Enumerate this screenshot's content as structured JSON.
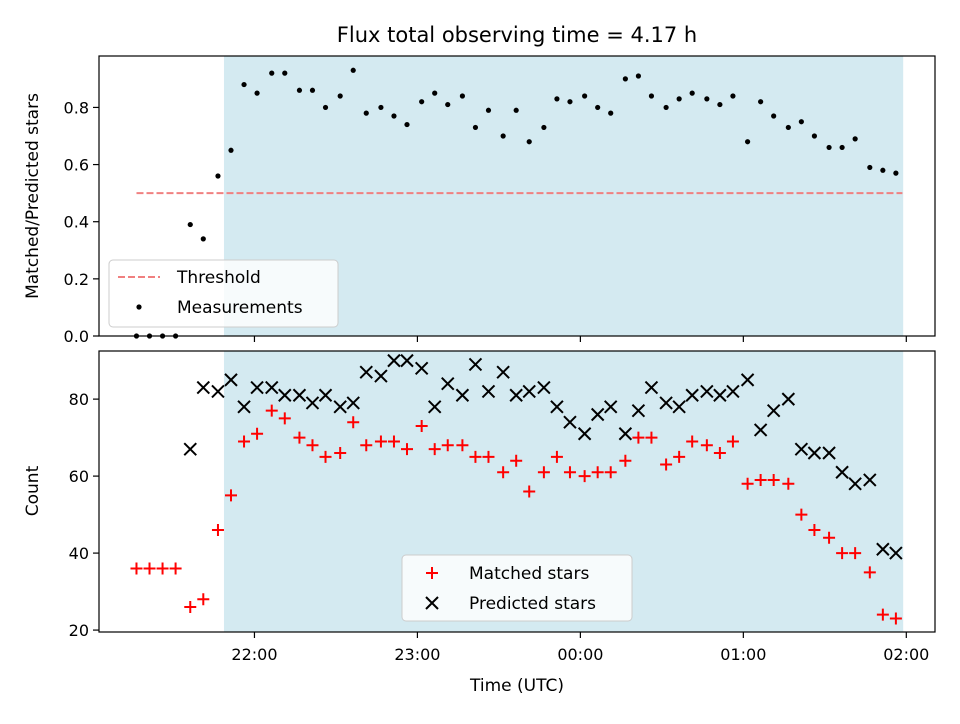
{
  "figure": {
    "title": "Flux total observing time = 4.17 h",
    "xlabel": "Time (UTC)",
    "xticks": [
      {
        "t": 21.9839,
        "label": "22:00"
      },
      {
        "t": 22.9839,
        "label": "23:00"
      },
      {
        "t": 23.9839,
        "label": "00:00"
      },
      {
        "t": 24.9839,
        "label": "01:00"
      },
      {
        "t": 25.9839,
        "label": "02:00"
      }
    ],
    "xlim": [
      21.03,
      26.16
    ],
    "observing_window": [
      21.7969,
      25.9648
    ],
    "colors": {
      "window": "#d4eaf1",
      "threshold": "#f08080",
      "matched": "#ff0000",
      "predicted": "#000000",
      "measure": "#000000"
    }
  },
  "chart_data": [
    {
      "type": "scatter",
      "panel": "top",
      "ylabel": "Matched/Predicted stars",
      "ylim": [
        0,
        0.98
      ],
      "yticks": [
        "0.0",
        "0.2",
        "0.4",
        "0.6",
        "0.8"
      ],
      "threshold": {
        "name": "Threshold",
        "y": 0.5,
        "x_range": [
          21.26,
          25.96
        ]
      },
      "legend": [
        "Threshold",
        "Measurements"
      ],
      "legend_position": "lower-left",
      "series": [
        {
          "name": "Measurements",
          "x": [
            21.26,
            21.34,
            21.42,
            21.5,
            21.59,
            21.67,
            21.76,
            21.84,
            21.92,
            22.0,
            22.09,
            22.17,
            22.26,
            22.34,
            22.42,
            22.51,
            22.59,
            22.67,
            22.76,
            22.84,
            22.92,
            23.01,
            23.09,
            23.17,
            23.26,
            23.34,
            23.42,
            23.51,
            23.59,
            23.67,
            23.76,
            23.84,
            23.92,
            24.01,
            24.09,
            24.17,
            24.26,
            24.34,
            24.42,
            24.51,
            24.59,
            24.67,
            24.76,
            24.84,
            24.92,
            25.01,
            25.09,
            25.17,
            25.26,
            25.34,
            25.42,
            25.51,
            25.59,
            25.67,
            25.76,
            25.84,
            25.92
          ],
          "y": [
            0.0,
            0.0,
            0.0,
            0.0,
            0.39,
            0.34,
            0.56,
            0.65,
            0.88,
            0.85,
            0.92,
            0.92,
            0.86,
            0.86,
            0.8,
            0.84,
            0.93,
            0.78,
            0.8,
            0.77,
            0.74,
            0.82,
            0.85,
            0.81,
            0.84,
            0.73,
            0.79,
            0.7,
            0.79,
            0.68,
            0.73,
            0.83,
            0.82,
            0.84,
            0.8,
            0.78,
            0.9,
            0.91,
            0.84,
            0.8,
            0.83,
            0.85,
            0.83,
            0.81,
            0.84,
            0.68,
            0.82,
            0.77,
            0.73,
            0.75,
            0.7,
            0.66,
            0.66,
            0.69,
            0.59,
            0.58,
            0.57
          ]
        }
      ]
    },
    {
      "type": "scatter",
      "panel": "bottom",
      "ylabel": "Count",
      "ylim": [
        19.5,
        92.5
      ],
      "yticks": [
        "20",
        "40",
        "60",
        "80"
      ],
      "legend": [
        "Matched stars",
        "Predicted stars"
      ],
      "legend_position": "lower-center",
      "x": [
        21.26,
        21.34,
        21.42,
        21.5,
        21.59,
        21.67,
        21.76,
        21.84,
        21.92,
        22.0,
        22.09,
        22.17,
        22.26,
        22.34,
        22.42,
        22.51,
        22.59,
        22.67,
        22.76,
        22.84,
        22.92,
        23.01,
        23.09,
        23.17,
        23.26,
        23.34,
        23.42,
        23.51,
        23.59,
        23.67,
        23.76,
        23.84,
        23.92,
        24.01,
        24.09,
        24.17,
        24.26,
        24.34,
        24.42,
        24.51,
        24.59,
        24.67,
        24.76,
        24.84,
        24.92,
        25.01,
        25.09,
        25.17,
        25.26,
        25.34,
        25.42,
        25.51,
        25.59,
        25.67,
        25.76,
        25.84,
        25.92
      ],
      "series": [
        {
          "name": "Matched stars",
          "marker": "plus",
          "values": [
            36,
            36,
            36,
            36,
            26,
            28,
            46,
            55,
            69,
            71,
            77,
            75,
            70,
            68,
            65,
            66,
            74,
            68,
            69,
            69,
            67,
            73,
            67,
            68,
            68,
            65,
            65,
            61,
            64,
            56,
            61,
            65,
            61,
            60,
            61,
            61,
            64,
            70,
            70,
            63,
            65,
            69,
            68,
            66,
            69,
            58,
            59,
            59,
            58,
            50,
            46,
            44,
            40,
            40,
            35,
            24,
            23
          ]
        },
        {
          "name": "Predicted stars",
          "marker": "x",
          "values": [
            null,
            null,
            null,
            null,
            67,
            83,
            82,
            85,
            78,
            83,
            83,
            81,
            81,
            79,
            81,
            78,
            79,
            87,
            86,
            90,
            90,
            88,
            78,
            84,
            81,
            89,
            82,
            87,
            81,
            82,
            83,
            78,
            74,
            71,
            76,
            78,
            71,
            77,
            83,
            79,
            78,
            81,
            82,
            81,
            82,
            85,
            72,
            77,
            80,
            67,
            66,
            66,
            61,
            58,
            59,
            41,
            40
          ]
        }
      ]
    }
  ]
}
